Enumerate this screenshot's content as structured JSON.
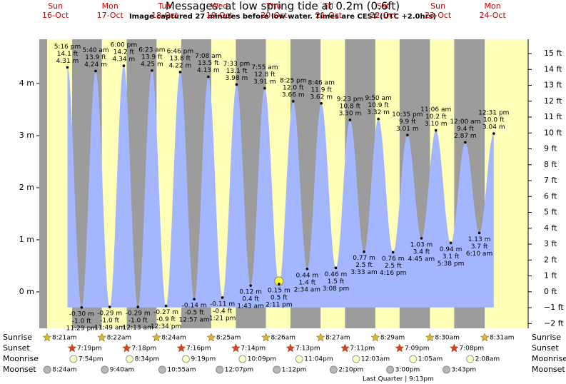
{
  "chart_data": {
    "type": "tide",
    "title": "Messages: at low  spring tide at 0.2m (0.6ft)",
    "subtitle": "Image captured 27 minutes before low water. Times are CEST (UTC +2.0hrs)",
    "color": "#a4b6ff",
    "day_color": "#ffffb8",
    "night_color": "#9c9c9c",
    "ylim": [
      -0.7,
      4.85
    ],
    "yticks": [
      {
        "value": 0,
        "label": "0 m"
      },
      {
        "value": 1,
        "label": "1 m"
      },
      {
        "value": 2,
        "label": "2 m"
      },
      {
        "value": 3,
        "label": "3 m"
      },
      {
        "value": 4,
        "label": "4 m"
      }
    ],
    "y2lim": [
      -2.3,
      15.9
    ],
    "y2ticks": [
      {
        "value": -2,
        "label": "−2 ft"
      },
      {
        "value": -1,
        "label": "−1 ft"
      },
      {
        "value": 0,
        "label": "0 ft"
      },
      {
        "value": 1,
        "label": "1 ft"
      },
      {
        "value": 2,
        "label": "2 ft"
      },
      {
        "value": 3,
        "label": "3 ft"
      },
      {
        "value": 4,
        "label": "4 ft"
      },
      {
        "value": 5,
        "label": "5 ft"
      },
      {
        "value": 6,
        "label": "6 ft"
      },
      {
        "value": 7,
        "label": "7 ft"
      },
      {
        "value": 8,
        "label": "8 ft"
      },
      {
        "value": 9,
        "label": "9 ft"
      },
      {
        "value": 10,
        "label": "10 ft"
      },
      {
        "value": 11,
        "label": "11 ft"
      },
      {
        "value": 12,
        "label": "12 ft"
      },
      {
        "value": 13,
        "label": "13 ft"
      },
      {
        "value": 14,
        "label": "14 ft"
      },
      {
        "value": 15,
        "label": "15 ft"
      }
    ],
    "row_labels": [
      "Sunrise",
      "Sunset",
      "Moonrise",
      "Moonset"
    ],
    "moon_phase": "Last Quarter | 9:13pm",
    "days": [
      {
        "day": "Sun",
        "date": "16-Oct",
        "sunrise": "8:21am",
        "sunset": "7:19pm",
        "moonrise": "7:54pm",
        "moonset": "8:24am",
        "tides": [
          {
            "time": "5:16 pm",
            "m": 4.31,
            "m_label": "4.31 m",
            "ft": 14.1,
            "ft_label": "14.1 ft"
          },
          {
            "time": "11:29 pm",
            "m": -0.3,
            "m_label": "-0.30 m",
            "ft": -1.0,
            "ft_label": "-1.0 ft"
          }
        ]
      },
      {
        "day": "Mon",
        "date": "17-Oct",
        "sunrise": "8:22am",
        "sunset": "7:18pm",
        "moonrise": "8:34pm",
        "moonset": "9:40am",
        "tides": [
          {
            "time": "5:40 am",
            "m": 4.24,
            "m_label": "4.24 m",
            "ft": 13.9,
            "ft_label": "13.9 ft"
          },
          {
            "time": "11:49 am",
            "m": -0.29,
            "m_label": "-0.29 m",
            "ft": -1.0,
            "ft_label": "-1.0 ft"
          },
          {
            "time": "6:00 pm",
            "m": 4.34,
            "m_label": "4.34 m",
            "ft": 14.2,
            "ft_label": "14.2 ft"
          }
        ]
      },
      {
        "day": "Tue",
        "date": "18-Oct",
        "sunrise": "8:24am",
        "sunset": "7:16pm",
        "moonrise": "9:19pm",
        "moonset": "10:55am",
        "tides": [
          {
            "time": "12:13 am",
            "m": -0.29,
            "m_label": "-0.29 m",
            "ft": -1.0,
            "ft_label": "-1.0 ft"
          },
          {
            "time": "6:23 am",
            "m": 4.25,
            "m_label": "4.25 m",
            "ft": 13.9,
            "ft_label": "13.9 ft"
          },
          {
            "time": "12:34 pm",
            "m": -0.27,
            "m_label": "-0.27 m",
            "ft": -0.9,
            "ft_label": "-0.9 ft"
          },
          {
            "time": "6:46 pm",
            "m": 4.22,
            "m_label": "4.22 m",
            "ft": 13.8,
            "ft_label": "13.8 ft"
          }
        ]
      },
      {
        "day": "Wed",
        "date": "19-Oct",
        "sunrise": "8:25am",
        "sunset": "7:14pm",
        "moonrise": "10:09pm",
        "moonset": "12:07pm",
        "tides": [
          {
            "time": "12:57 am",
            "m": -0.14,
            "m_label": "-0.14 m",
            "ft": -0.5,
            "ft_label": "-0.5 ft"
          },
          {
            "time": "7:08 am",
            "m": 4.13,
            "m_label": "4.13 m",
            "ft": 13.5,
            "ft_label": "13.5 ft"
          },
          {
            "time": "1:21 pm",
            "m": -0.11,
            "m_label": "-0.11 m",
            "ft": -0.4,
            "ft_label": "-0.4 ft"
          },
          {
            "time": "7:33 pm",
            "m": 3.98,
            "m_label": "3.98 m",
            "ft": 13.1,
            "ft_label": "13.1 ft"
          }
        ]
      },
      {
        "day": "Thu",
        "date": "20-Oct",
        "sunrise": "8:26am",
        "sunset": "7:13pm",
        "moonrise": "11:04pm",
        "moonset": "1:12pm",
        "tides": [
          {
            "time": "1:43 am",
            "m": 0.12,
            "m_label": "0.12 m",
            "ft": 0.4,
            "ft_label": "0.4 ft"
          },
          {
            "time": "7:55 am",
            "m": 3.91,
            "m_label": "3.91 m",
            "ft": 12.8,
            "ft_label": "12.8 ft"
          },
          {
            "time": "2:11 pm",
            "m": 0.15,
            "m_label": "0.15 m",
            "ft": 0.5,
            "ft_label": "0.5 ft"
          },
          {
            "time": "8:25 pm",
            "m": 3.66,
            "m_label": "3.66 m",
            "ft": 12.0,
            "ft_label": "12.0 ft"
          }
        ]
      },
      {
        "day": "Fri",
        "date": "21-Oct",
        "sunrise": "8:27am",
        "sunset": "7:11pm",
        "moonset": "2:10pm",
        "tides": [
          {
            "time": "2:34 am",
            "m": 0.44,
            "m_label": "0.44 m",
            "ft": 1.4,
            "ft_label": "1.4 ft"
          },
          {
            "time": "8:46 am",
            "m": 3.62,
            "m_label": "3.62 m",
            "ft": 11.9,
            "ft_label": "11.9 ft"
          },
          {
            "time": "3:08 pm",
            "m": 0.46,
            "m_label": "0.46 m",
            "ft": 1.5,
            "ft_label": "1.5 ft"
          },
          {
            "time": "9:23 pm",
            "m": 3.3,
            "m_label": "3.30 m",
            "ft": 10.8,
            "ft_label": "10.8 ft"
          }
        ]
      },
      {
        "day": "Sat",
        "date": "22-Oct",
        "sunrise": "8:29am",
        "sunset": "7:09pm",
        "moonrise": "12:03am",
        "moonset": "3:00pm",
        "tides": [
          {
            "time": "3:33 am",
            "m": 0.77,
            "m_label": "0.77 m",
            "ft": 2.5,
            "ft_label": "2.5 ft"
          },
          {
            "time": "9:50 am",
            "m": 3.32,
            "m_label": "3.32 m",
            "ft": 10.9,
            "ft_label": "10.9 ft"
          },
          {
            "time": "4:16 pm",
            "m": 0.76,
            "m_label": "0.76 m",
            "ft": 2.5,
            "ft_label": "2.5 ft"
          },
          {
            "time": "10:35 pm",
            "m": 3.01,
            "m_label": "3.01 m",
            "ft": 9.9,
            "ft_label": "9.9 ft"
          }
        ]
      },
      {
        "day": "Sun",
        "date": "23-Oct",
        "sunrise": "8:30am",
        "sunset": "7:08pm",
        "moonrise": "1:05am",
        "moonset": "3:43pm",
        "tides": [
          {
            "time": "4:45 am",
            "m": 1.03,
            "m_label": "1.03 m",
            "ft": 3.4,
            "ft_label": "3.4 ft"
          },
          {
            "time": "11:06 am",
            "m": 3.1,
            "m_label": "3.10 m",
            "ft": 10.2,
            "ft_label": "10.2 ft"
          },
          {
            "time": "5:38 pm",
            "m": 0.94,
            "m_label": "0.94 m",
            "ft": 3.1,
            "ft_label": "3.1 ft"
          }
        ]
      },
      {
        "day": "Mon",
        "date": "24-Oct",
        "sunrise": "8:31am",
        "moonrise": "2:08am",
        "tides": [
          {
            "time": "12:00 am",
            "m": 2.87,
            "m_label": "2.87 m",
            "ft": 9.4,
            "ft_label": "9.4 ft"
          },
          {
            "time": "6:10 am",
            "m": 1.13,
            "m_label": "1.13 m",
            "ft": 3.7,
            "ft_label": "3.7 ft"
          },
          {
            "time": "12:31 pm",
            "m": 3.04,
            "m_label": "3.04 m",
            "ft": 10.0,
            "ft_label": "10.0 ft"
          }
        ]
      }
    ]
  }
}
